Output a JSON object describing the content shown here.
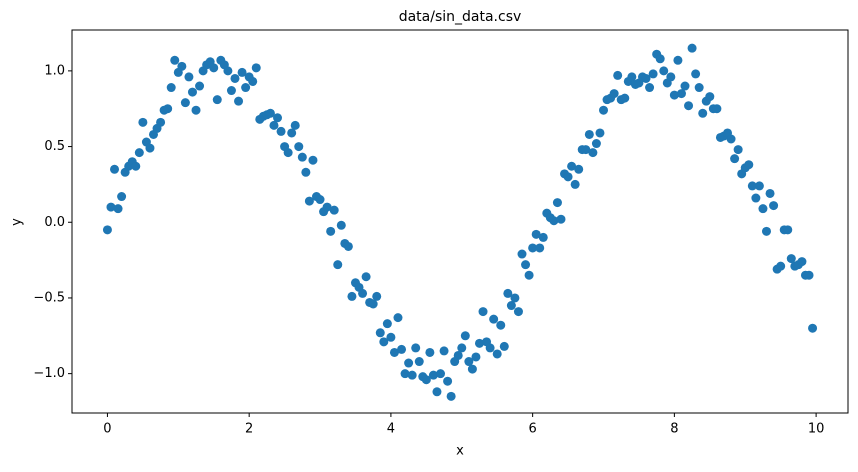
{
  "chart_data": {
    "type": "scatter",
    "title": "data/sin_data.csv",
    "x_label": "x",
    "y_label": "y",
    "color": "#1f77b4",
    "x": [
      0,
      0.05,
      0.1,
      0.15,
      0.2,
      0.25,
      0.3,
      0.35,
      0.4,
      0.45,
      0.5,
      0.55,
      0.6,
      0.65,
      0.7,
      0.75,
      0.8,
      0.85,
      0.9,
      0.95,
      1,
      1.05,
      1.1,
      1.15,
      1.2,
      1.25,
      1.3,
      1.35,
      1.4,
      1.45,
      1.5,
      1.55,
      1.6,
      1.65,
      1.7,
      1.75,
      1.8,
      1.85,
      1.9,
      1.95,
      2,
      2.05,
      2.1,
      2.15,
      2.2,
      2.25,
      2.3,
      2.35,
      2.4,
      2.45,
      2.5,
      2.55,
      2.6,
      2.65,
      2.7,
      2.75,
      2.8,
      2.85,
      2.9,
      2.95,
      3,
      3.05,
      3.1,
      3.15,
      3.2,
      3.25,
      3.3,
      3.35,
      3.4,
      3.45,
      3.5,
      3.55,
      3.6,
      3.65,
      3.7,
      3.75,
      3.8,
      3.85,
      3.9,
      3.95,
      4,
      4.05,
      4.1,
      4.15,
      4.2,
      4.25,
      4.3,
      4.35,
      4.4,
      4.45,
      4.5,
      4.55,
      4.6,
      4.65,
      4.7,
      4.75,
      4.8,
      4.85,
      4.9,
      4.95,
      5,
      5.05,
      5.1,
      5.15,
      5.2,
      5.25,
      5.3,
      5.35,
      5.4,
      5.45,
      5.5,
      5.55,
      5.6,
      5.65,
      5.7,
      5.75,
      5.8,
      5.85,
      5.9,
      5.95,
      6,
      6.05,
      6.1,
      6.15,
      6.2,
      6.25,
      6.3,
      6.35,
      6.4,
      6.45,
      6.5,
      6.55,
      6.6,
      6.65,
      6.7,
      6.75,
      6.8,
      6.85,
      6.9,
      6.95,
      7,
      7.05,
      7.1,
      7.15,
      7.2,
      7.25,
      7.3,
      7.35,
      7.4,
      7.45,
      7.5,
      7.55,
      7.6,
      7.65,
      7.7,
      7.75,
      7.8,
      7.85,
      7.9,
      7.95,
      8,
      8.05,
      8.1,
      8.15,
      8.2,
      8.25,
      8.3,
      8.35,
      8.4,
      8.45,
      8.5,
      8.55,
      8.6,
      8.65,
      8.7,
      8.75,
      8.8,
      8.85,
      8.9,
      8.95,
      9,
      9.05,
      9.1,
      9.15,
      9.2,
      9.25,
      9.3,
      9.35,
      9.4,
      9.45,
      9.5,
      9.55,
      9.6,
      9.65,
      9.7,
      9.75,
      9.8,
      9.85,
      9.9,
      9.95
    ],
    "values": [
      -0.05,
      0.1,
      0.35,
      0.09,
      0.17,
      0.33,
      0.37,
      0.4,
      0.37,
      0.46,
      0.66,
      0.53,
      0.49,
      0.58,
      0.62,
      0.66,
      0.74,
      0.75,
      0.89,
      1.07,
      0.99,
      1.03,
      0.79,
      0.96,
      0.86,
      0.74,
      0.9,
      1.0,
      1.04,
      1.06,
      1.02,
      0.81,
      1.07,
      1.04,
      1.0,
      0.87,
      0.95,
      0.8,
      0.99,
      0.89,
      0.96,
      0.93,
      1.02,
      0.68,
      0.7,
      0.71,
      0.72,
      0.64,
      0.69,
      0.6,
      0.5,
      0.46,
      0.59,
      0.64,
      0.5,
      0.43,
      0.33,
      0.14,
      0.41,
      0.17,
      0.15,
      0.07,
      0.1,
      -0.06,
      0.08,
      -0.28,
      -0.02,
      -0.14,
      -0.16,
      -0.49,
      -0.4,
      -0.43,
      -0.47,
      -0.36,
      -0.53,
      -0.54,
      -0.49,
      -0.73,
      -0.79,
      -0.67,
      -0.76,
      -0.86,
      -0.63,
      -0.84,
      -1.0,
      -0.93,
      -1.01,
      -0.83,
      -0.92,
      -1.02,
      -1.04,
      -0.86,
      -1.01,
      -1.12,
      -1.0,
      -0.85,
      -1.05,
      -1.15,
      -0.92,
      -0.88,
      -0.83,
      -0.75,
      -0.92,
      -0.97,
      -0.89,
      -0.8,
      -0.59,
      -0.79,
      -0.83,
      -0.64,
      -0.87,
      -0.68,
      -0.82,
      -0.47,
      -0.55,
      -0.5,
      -0.59,
      -0.21,
      -0.28,
      -0.35,
      -0.17,
      -0.08,
      -0.17,
      -0.1,
      0.06,
      0.03,
      0.01,
      0.13,
      0.02,
      0.32,
      0.3,
      0.37,
      0.25,
      0.35,
      0.48,
      0.48,
      0.58,
      0.46,
      0.52,
      0.59,
      0.74,
      0.81,
      0.82,
      0.85,
      0.97,
      0.81,
      0.82,
      0.93,
      0.96,
      0.91,
      0.92,
      0.96,
      0.95,
      0.89,
      0.98,
      1.11,
      1.08,
      1.0,
      0.92,
      0.96,
      0.84,
      1.07,
      0.85,
      0.9,
      0.77,
      1.15,
      0.98,
      0.89,
      0.72,
      0.8,
      0.83,
      0.75,
      0.75,
      0.56,
      0.57,
      0.59,
      0.55,
      0.42,
      0.48,
      0.32,
      0.36,
      0.38,
      0.24,
      0.16,
      0.24,
      0.09,
      -0.06,
      0.19,
      0.11,
      -0.31,
      -0.29,
      -0.05,
      -0.05,
      -0.24,
      -0.29,
      -0.28,
      -0.26,
      -0.35,
      -0.35,
      -0.7
    ],
    "xlim": [
      -0.5,
      10.45
    ],
    "ylim": [
      -1.26,
      1.27
    ],
    "xticks": [
      0,
      2,
      4,
      6,
      8,
      10
    ],
    "yticks": [
      {
        "value": -1.0,
        "label": "−1.0"
      },
      {
        "value": -0.5,
        "label": "−0.5"
      },
      {
        "value": 0.0,
        "label": "0.0"
      },
      {
        "value": 0.5,
        "label": "0.5"
      },
      {
        "value": 1.0,
        "label": "1.0"
      }
    ]
  }
}
